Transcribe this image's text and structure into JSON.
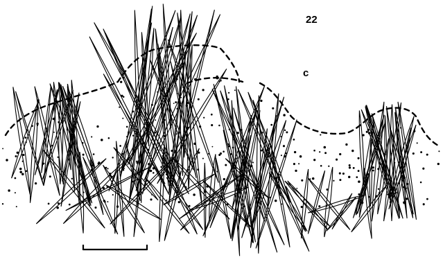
{
  "figure": {
    "number": "22",
    "panel_label": "c",
    "ink_color": "#000000",
    "background_color": "#ffffff"
  }
}
